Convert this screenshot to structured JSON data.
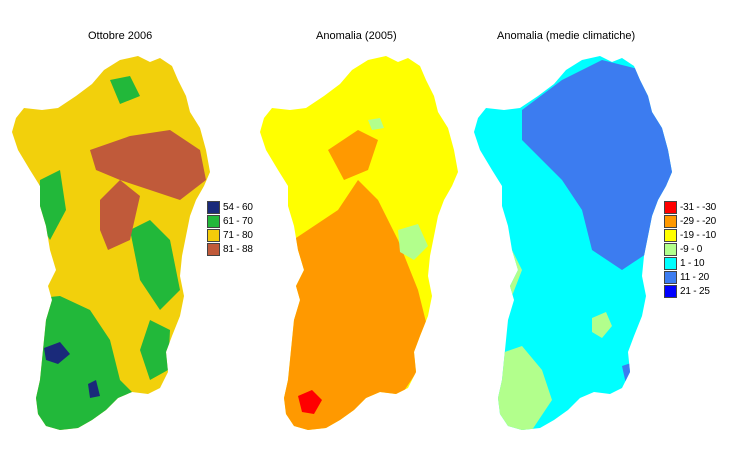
{
  "maps": [
    {
      "title": "Ottobre 2006",
      "legend": [
        {
          "label": "54 - 60",
          "color": "#1a2a7a"
        },
        {
          "label": "61 - 70",
          "color": "#22b83a"
        },
        {
          "label": "71 - 80",
          "color": "#f4cc0a"
        },
        {
          "label": "81 - 88",
          "color": "#c05a3a"
        }
      ]
    },
    {
      "title": "Anomalia (2005)",
      "legend": []
    },
    {
      "title": "Anomalia (medie climatiche)",
      "legend": [
        {
          "label": "-31 - -30",
          "color": "#ff0000"
        },
        {
          "label": "-29 - -20",
          "color": "#ff9900"
        },
        {
          "label": "-19 - -10",
          "color": "#ffff00"
        },
        {
          "label": "-9 - 0",
          "color": "#b2ff8c"
        },
        {
          "label": "1 - 10",
          "color": "#00ffff"
        },
        {
          "label": "11 - 20",
          "color": "#3c7cf0"
        },
        {
          "label": "21 - 25",
          "color": "#0000ff"
        }
      ]
    }
  ]
}
